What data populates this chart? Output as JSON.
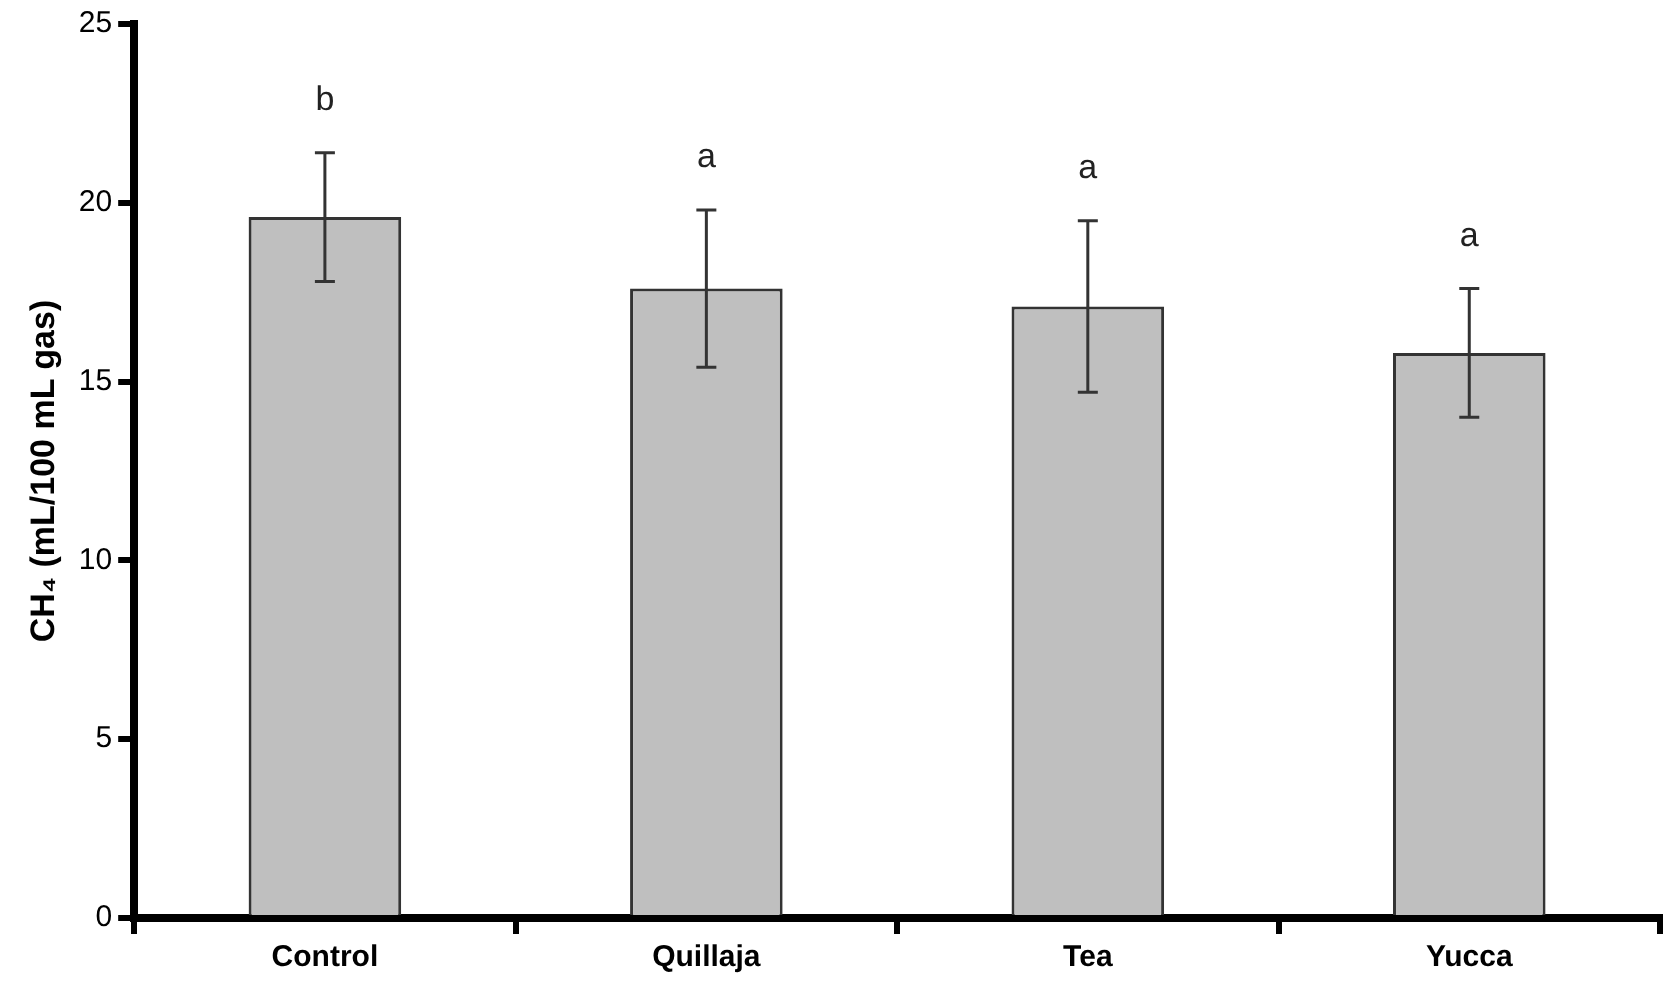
{
  "chart_data": {
    "type": "bar",
    "ylabel": "CH₄ (mL/100 mL gas)",
    "categories": [
      "Control",
      "Quillaja",
      "Tea",
      "Yucca"
    ],
    "values": [
      19.6,
      17.6,
      17.1,
      15.8
    ],
    "errors": [
      1.8,
      2.2,
      2.4,
      1.8
    ],
    "color": "#bfbfbf",
    "ylim": [
      0,
      25
    ],
    "yticks": [
      0,
      5,
      10,
      15,
      20,
      25
    ],
    "grid": false,
    "legend": false,
    "annotations": [
      "b",
      "a",
      "a",
      "a"
    ]
  }
}
